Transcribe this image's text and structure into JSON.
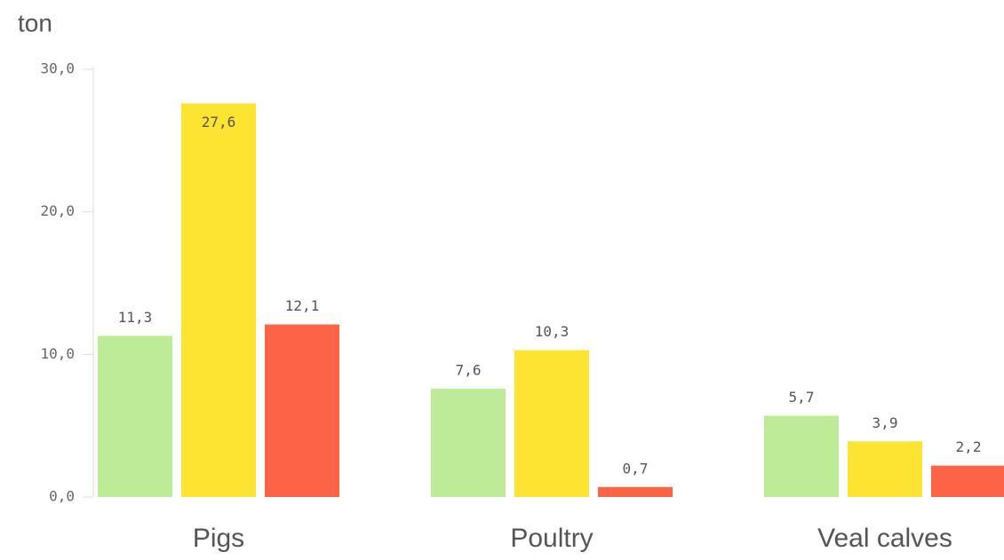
{
  "chart_data": {
    "type": "bar",
    "y_label": "ton",
    "categories": [
      "Pigs",
      "Poultry",
      "Veal calves"
    ],
    "series": [
      {
        "color": "#bdeb98",
        "values": [
          11.3,
          7.6,
          5.7
        ],
        "value_labels": [
          "11,3",
          "7,6",
          "5,7"
        ]
      },
      {
        "color": "#fde432",
        "values": [
          27.6,
          10.3,
          3.9
        ],
        "value_labels": [
          "27,6",
          "10,3",
          "3,9"
        ]
      },
      {
        "color": "#fd6446",
        "values": [
          12.1,
          0.7,
          2.2
        ],
        "value_labels": [
          "12,1",
          "0,7",
          "2,2"
        ]
      }
    ],
    "ylim": [
      0,
      30
    ],
    "yticks": [
      {
        "value": 0,
        "label": "0,0"
      },
      {
        "value": 10,
        "label": "10,0"
      },
      {
        "value": 20,
        "label": "20,0"
      },
      {
        "value": 30,
        "label": "30,0"
      }
    ],
    "grid": false
  }
}
